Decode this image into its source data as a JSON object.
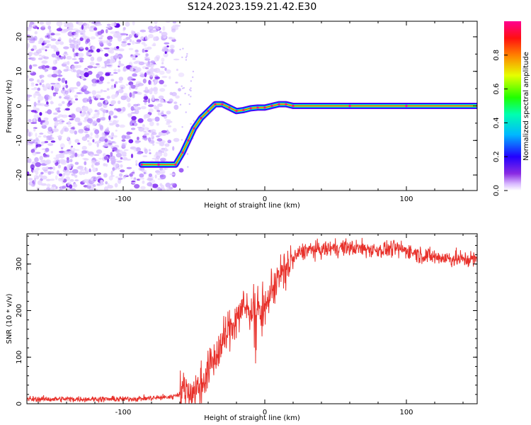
{
  "title": "S124.2023.159.21.42.E30",
  "colors": {
    "snr_line": "#e8302a",
    "noise_cloud": "#8a2be2",
    "axis": "#000000",
    "colormap": [
      "#ffffff",
      "#c9a6ff",
      "#6a00ff",
      "#0000ff",
      "#00e5ff",
      "#00ff40",
      "#ffff00",
      "#ff7f00",
      "#ff0000",
      "#ff0080"
    ]
  },
  "chart_data": [
    {
      "type": "heatmap",
      "name": "spectrogram",
      "title": "S124.2023.159.21.42.E30",
      "xlabel": "Height of straight line (km)",
      "ylabel": "Frequency (Hz)",
      "xlim": [
        -168,
        150
      ],
      "ylim": [
        -24.5,
        24.5
      ],
      "xticks": [
        -100,
        0,
        100
      ],
      "yticks": [
        -20,
        -10,
        0,
        10,
        20
      ],
      "colorbar": {
        "label": "Normalized spectral amplitude",
        "range": [
          0,
          1
        ],
        "ticks": [
          "0.0",
          "0.2",
          "0.4",
          "0.6",
          "0.8"
        ],
        "colormap": "rainbow"
      },
      "ridge": [
        [
          -87,
          -17
        ],
        [
          -75,
          -17
        ],
        [
          -63,
          -17
        ],
        [
          -58,
          -13.5
        ],
        [
          -54,
          -10
        ],
        [
          -50,
          -6.5
        ],
        [
          -45,
          -3.5
        ],
        [
          -40,
          -1.5
        ],
        [
          -35,
          0.5
        ],
        [
          -30,
          0.5
        ],
        [
          -25,
          -0.5
        ],
        [
          -20,
          -1.5
        ],
        [
          -15,
          -1.2
        ],
        [
          -10,
          -0.7
        ],
        [
          -5,
          -0.5
        ],
        [
          0,
          -0.5
        ],
        [
          5,
          0
        ],
        [
          10,
          0.5
        ],
        [
          15,
          0.5
        ],
        [
          20,
          0
        ],
        [
          60,
          0
        ],
        [
          100,
          0
        ],
        [
          150,
          0
        ]
      ]
    },
    {
      "type": "line",
      "name": "snr",
      "xlabel": "Height of straight line (km)",
      "ylabel": "SNR (10 * v/v)",
      "xlim": [
        -168,
        150
      ],
      "ylim": [
        0,
        365
      ],
      "xticks": [
        -100,
        0,
        100
      ],
      "yticks": [
        0,
        100,
        200,
        300
      ],
      "series": [
        {
          "x": [
            -168,
            -150,
            -120,
            -100,
            -80,
            -65,
            -55,
            -50,
            -45,
            -40,
            -35,
            -30,
            -25,
            -20,
            -15,
            -10,
            -5,
            0,
            5,
            10,
            15,
            20,
            25,
            30,
            40,
            50,
            60,
            70,
            80,
            90,
            100,
            110,
            120,
            130,
            140,
            150
          ],
          "values": [
            10,
            10,
            10,
            10,
            12,
            15,
            30,
            25,
            40,
            70,
            100,
            130,
            160,
            185,
            210,
            200,
            205,
            200,
            250,
            270,
            290,
            310,
            325,
            330,
            330,
            335,
            335,
            333,
            330,
            333,
            330,
            320,
            315,
            312,
            310,
            310
          ]
        }
      ]
    }
  ]
}
